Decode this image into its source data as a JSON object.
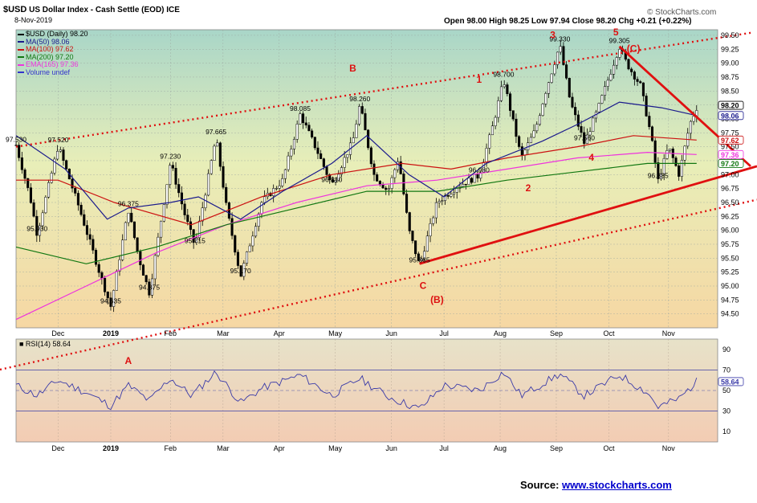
{
  "header": {
    "symbol": "$USD",
    "title": "US Dollar Index - Cash Settle (EOD)",
    "exchange": "ICE",
    "date": "8-Nov-2019",
    "ohlc": "Open 98.00  High 98.25  Low 97.94  Close 98.20  Chg +0.21 (+0.22%)",
    "watermark": "© StockCharts.com"
  },
  "legend": [
    {
      "label": "$USD (Daily) 98.20",
      "color": "#000000"
    },
    {
      "label": "MA(50) 98.06",
      "color": "#1a1a8c"
    },
    {
      "label": "MA(100) 97.62",
      "color": "#cc1111"
    },
    {
      "label": "MA(200) 97.20",
      "color": "#117711"
    },
    {
      "label": "EMA(165) 97.36",
      "color": "#ee33dd"
    },
    {
      "label": "Volume undef",
      "color": "#3333cc"
    }
  ],
  "source": {
    "prefix": "Source:",
    "link": "www.stockcharts.com"
  },
  "chart_data": {
    "type": "candlestick",
    "ylim": [
      94.25,
      99.6
    ],
    "yticks": [
      94.5,
      94.75,
      95.0,
      95.25,
      95.5,
      95.75,
      96.0,
      96.25,
      96.5,
      96.75,
      97.0,
      97.25,
      97.5,
      97.75,
      98.0,
      98.25,
      98.5,
      98.75,
      99.0,
      99.25,
      99.5
    ],
    "x_months": [
      "Dec",
      "2019",
      "Feb",
      "Mar",
      "Apr",
      "May",
      "Jun",
      "Jul",
      "Aug",
      "Sep",
      "Oct",
      "Nov"
    ],
    "month_positions": [
      0.06,
      0.135,
      0.22,
      0.295,
      0.375,
      0.455,
      0.535,
      0.61,
      0.69,
      0.77,
      0.845,
      0.93
    ],
    "price_path": [
      [
        0.0,
        97.53
      ],
      [
        0.02,
        96.6
      ],
      [
        0.03,
        95.93
      ],
      [
        0.06,
        97.52
      ],
      [
        0.09,
        96.4
      ],
      [
        0.12,
        95.2
      ],
      [
        0.135,
        94.635
      ],
      [
        0.16,
        96.375
      ],
      [
        0.175,
        95.5
      ],
      [
        0.19,
        94.875
      ],
      [
        0.22,
        97.23
      ],
      [
        0.24,
        96.3
      ],
      [
        0.255,
        95.715
      ],
      [
        0.285,
        97.665
      ],
      [
        0.3,
        96.4
      ],
      [
        0.32,
        95.17
      ],
      [
        0.35,
        96.5
      ],
      [
        0.38,
        96.9
      ],
      [
        0.405,
        98.085
      ],
      [
        0.43,
        97.4
      ],
      [
        0.45,
        96.81
      ],
      [
        0.48,
        97.6
      ],
      [
        0.49,
        98.26
      ],
      [
        0.51,
        97.0
      ],
      [
        0.53,
        96.7
      ],
      [
        0.545,
        97.3
      ],
      [
        0.56,
        96.0
      ],
      [
        0.575,
        95.365
      ],
      [
        0.6,
        96.5
      ],
      [
        0.63,
        96.8
      ],
      [
        0.66,
        96.98
      ],
      [
        0.68,
        97.9
      ],
      [
        0.695,
        98.7
      ],
      [
        0.72,
        97.3
      ],
      [
        0.74,
        97.8
      ],
      [
        0.755,
        98.5
      ],
      [
        0.775,
        99.33
      ],
      [
        0.79,
        98.3
      ],
      [
        0.81,
        97.56
      ],
      [
        0.83,
        98.2
      ],
      [
        0.86,
        99.305
      ],
      [
        0.87,
        99.0
      ],
      [
        0.89,
        98.6
      ],
      [
        0.905,
        97.7
      ],
      [
        0.915,
        96.885
      ],
      [
        0.93,
        97.5
      ],
      [
        0.945,
        97.0
      ],
      [
        0.96,
        97.9
      ],
      [
        0.97,
        98.2
      ]
    ],
    "ma50": [
      [
        0.0,
        97.7
      ],
      [
        0.07,
        97.1
      ],
      [
        0.13,
        96.2
      ],
      [
        0.16,
        96.4
      ],
      [
        0.22,
        96.5
      ],
      [
        0.26,
        96.6
      ],
      [
        0.32,
        96.2
      ],
      [
        0.38,
        96.7
      ],
      [
        0.45,
        97.2
      ],
      [
        0.5,
        97.7
      ],
      [
        0.56,
        97.0
      ],
      [
        0.61,
        96.6
      ],
      [
        0.67,
        97.2
      ],
      [
        0.75,
        97.6
      ],
      [
        0.8,
        97.9
      ],
      [
        0.86,
        98.3
      ],
      [
        0.92,
        98.2
      ],
      [
        0.97,
        98.06
      ]
    ],
    "ma100": [
      [
        0.0,
        96.9
      ],
      [
        0.06,
        96.9
      ],
      [
        0.14,
        96.5
      ],
      [
        0.25,
        96.1
      ],
      [
        0.35,
        96.6
      ],
      [
        0.45,
        97.0
      ],
      [
        0.55,
        97.2
      ],
      [
        0.62,
        97.1
      ],
      [
        0.7,
        97.3
      ],
      [
        0.8,
        97.5
      ],
      [
        0.88,
        97.7
      ],
      [
        0.97,
        97.62
      ]
    ],
    "ma200": [
      [
        0.0,
        95.7
      ],
      [
        0.1,
        95.4
      ],
      [
        0.2,
        95.7
      ],
      [
        0.3,
        96.1
      ],
      [
        0.4,
        96.4
      ],
      [
        0.5,
        96.7
      ],
      [
        0.6,
        96.7
      ],
      [
        0.7,
        96.9
      ],
      [
        0.8,
        97.05
      ],
      [
        0.9,
        97.2
      ],
      [
        0.97,
        97.2
      ]
    ],
    "ema165": [
      [
        0.0,
        94.4
      ],
      [
        0.1,
        95.0
      ],
      [
        0.2,
        95.6
      ],
      [
        0.3,
        96.1
      ],
      [
        0.4,
        96.5
      ],
      [
        0.5,
        96.8
      ],
      [
        0.6,
        96.9
      ],
      [
        0.7,
        97.1
      ],
      [
        0.8,
        97.3
      ],
      [
        0.9,
        97.4
      ],
      [
        0.97,
        97.36
      ]
    ],
    "price_labels": [
      {
        "text": "97.530",
        "x": 0.0,
        "y": 97.53
      },
      {
        "text": "95.930",
        "x": 0.03,
        "y": 95.93
      },
      {
        "text": "97.520",
        "x": 0.06,
        "y": 97.52
      },
      {
        "text": "94.635",
        "x": 0.135,
        "y": 94.635
      },
      {
        "text": "96.375",
        "x": 0.16,
        "y": 96.375
      },
      {
        "text": "94.875",
        "x": 0.19,
        "y": 94.875
      },
      {
        "text": "97.230",
        "x": 0.22,
        "y": 97.23
      },
      {
        "text": "95.715",
        "x": 0.255,
        "y": 95.715
      },
      {
        "text": "97.665",
        "x": 0.285,
        "y": 97.665
      },
      {
        "text": "95.170",
        "x": 0.32,
        "y": 95.17
      },
      {
        "text": "98.085",
        "x": 0.405,
        "y": 98.085
      },
      {
        "text": "96.810",
        "x": 0.45,
        "y": 96.81
      },
      {
        "text": "98.260",
        "x": 0.49,
        "y": 98.26
      },
      {
        "text": "95.365",
        "x": 0.575,
        "y": 95.365
      },
      {
        "text": "96.980",
        "x": 0.66,
        "y": 96.98
      },
      {
        "text": "98.700",
        "x": 0.695,
        "y": 98.7
      },
      {
        "text": "99.330",
        "x": 0.775,
        "y": 99.33
      },
      {
        "text": "97.560",
        "x": 0.81,
        "y": 97.56
      },
      {
        "text": "99.305",
        "x": 0.86,
        "y": 99.305
      },
      {
        "text": "96.885",
        "x": 0.915,
        "y": 96.885
      }
    ],
    "wave_labels": [
      {
        "text": "B",
        "x": 0.48,
        "y": 98.85
      },
      {
        "text": "1",
        "x": 0.66,
        "y": 98.65
      },
      {
        "text": "3",
        "x": 0.765,
        "y": 99.45
      },
      {
        "text": "5",
        "x": 0.855,
        "y": 99.5
      },
      {
        "text": "(C)",
        "x": 0.88,
        "y": 99.2
      },
      {
        "text": "4",
        "x": 0.82,
        "y": 97.25
      },
      {
        "text": "2",
        "x": 0.73,
        "y": 96.7
      },
      {
        "text": "C",
        "x": 0.58,
        "y": 94.95
      },
      {
        "text": "(B)",
        "x": 0.6,
        "y": 94.7
      },
      {
        "text": "A",
        "x": 0.16,
        "y": 93.6
      }
    ],
    "right_axis_tags": [
      {
        "text": "98.20",
        "y": 98.2,
        "color": "#000000"
      },
      {
        "text": "98.06",
        "y": 98.06,
        "color": "#1a1a8c"
      },
      {
        "text": "97.62",
        "y": 97.62,
        "color": "#cc1111"
      },
      {
        "text": "97.36",
        "y": 97.36,
        "color": "#ee33dd"
      },
      {
        "text": "97.20",
        "y": 97.2,
        "color": "#117711"
      }
    ],
    "rsi": {
      "label": "RSI(14) 58.64",
      "value_tag": "58.64",
      "ylim": [
        0,
        100
      ],
      "yticks": [
        10,
        30,
        50,
        70,
        90
      ],
      "upper": 70,
      "lower": 30,
      "mid": 50,
      "path": [
        [
          0.0,
          55
        ],
        [
          0.03,
          45
        ],
        [
          0.06,
          60
        ],
        [
          0.1,
          48
        ],
        [
          0.135,
          35
        ],
        [
          0.16,
          55
        ],
        [
          0.19,
          40
        ],
        [
          0.22,
          62
        ],
        [
          0.25,
          45
        ],
        [
          0.285,
          68
        ],
        [
          0.32,
          38
        ],
        [
          0.35,
          52
        ],
        [
          0.405,
          65
        ],
        [
          0.45,
          45
        ],
        [
          0.49,
          62
        ],
        [
          0.53,
          44
        ],
        [
          0.575,
          32
        ],
        [
          0.61,
          55
        ],
        [
          0.66,
          50
        ],
        [
          0.695,
          68
        ],
        [
          0.72,
          45
        ],
        [
          0.775,
          66
        ],
        [
          0.81,
          45
        ],
        [
          0.86,
          65
        ],
        [
          0.9,
          48
        ],
        [
          0.915,
          34
        ],
        [
          0.945,
          42
        ],
        [
          0.97,
          58.64
        ]
      ]
    }
  }
}
